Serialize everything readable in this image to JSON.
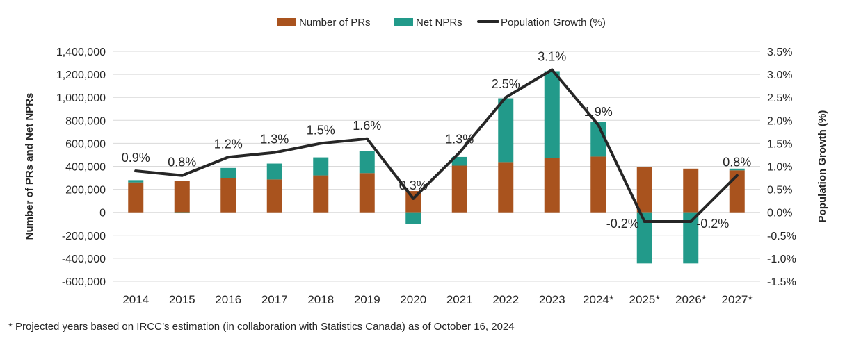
{
  "chart_data": {
    "type": "bar",
    "stacked": true,
    "categories": [
      "2014",
      "2015",
      "2016",
      "2017",
      "2018",
      "2019",
      "2020",
      "2021",
      "2022",
      "2023",
      "2024*",
      "2025*",
      "2026*",
      "2027*"
    ],
    "series": [
      {
        "name": "Number of PRs",
        "kind": "bar",
        "axis": "left",
        "color": "#A9531E",
        "values": [
          260000,
          272000,
          296000,
          286000,
          321000,
          341000,
          185000,
          406000,
          437000,
          471000,
          485000,
          395000,
          380000,
          365000
        ]
      },
      {
        "name": "Net NPRs",
        "kind": "bar",
        "axis": "left",
        "color": "#229A8A",
        "values": [
          20000,
          -8000,
          90000,
          138000,
          157000,
          189000,
          -100000,
          76000,
          555000,
          757000,
          300000,
          -445000,
          -445000,
          15000
        ]
      },
      {
        "name": "Population Growth (%)",
        "kind": "line",
        "axis": "right",
        "color": "#262626",
        "values": [
          0.9,
          0.8,
          1.2,
          1.3,
          1.5,
          1.6,
          0.3,
          1.3,
          2.5,
          3.1,
          1.9,
          -0.2,
          -0.2,
          0.8
        ],
        "labels": [
          "0.9%",
          "0.8%",
          "1.2%",
          "1.3%",
          "1.5%",
          "1.6%",
          "0.3%",
          "1.3%",
          "2.5%",
          "3.1%",
          "1.9%",
          "-0.2%",
          "-0.2%",
          "0.8%"
        ]
      }
    ],
    "ylabel": "Number of PRs and Net NPRs",
    "ylabel_right": "Population Growth (%)",
    "ylim": [
      -600000,
      1400000
    ],
    "ylim_right": [
      -1.5,
      3.5
    ],
    "yticks": [
      "1,400,000",
      "1,200,000",
      "1,000,000",
      "800,000",
      "600,000",
      "400,000",
      "200,000",
      "0",
      "-200,000",
      "-400,000",
      "-600,000"
    ],
    "yticks_right": [
      "3.5%",
      "3.0%",
      "2.5%",
      "2.0%",
      "1.5%",
      "1.0%",
      "0.5%",
      "0.0%",
      "-0.5%",
      "-1.0%",
      "-1.5%"
    ],
    "grid": true,
    "legend_position": "top-center"
  },
  "footnote": "* Projected years based on IRCC’s estimation (in collaboration with Statistics Canada) as of October 16, 2024"
}
